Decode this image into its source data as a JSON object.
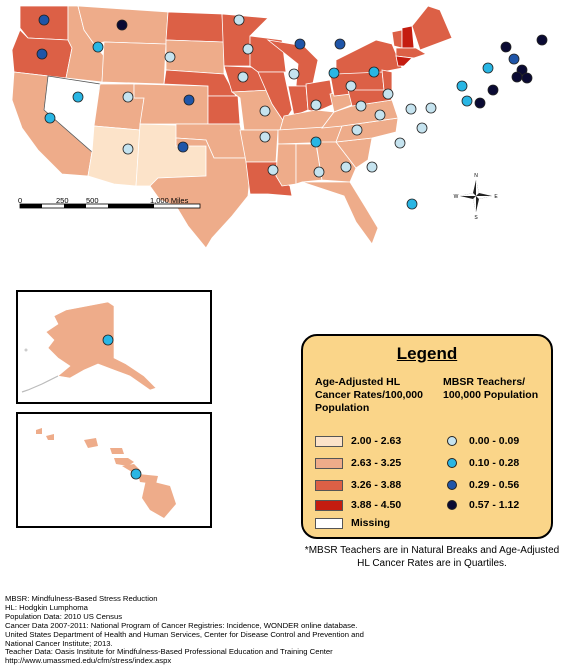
{
  "scale_bar": {
    "labels": [
      "0",
      "250",
      "500",
      "1,000 Miles"
    ]
  },
  "compass": {
    "n": "N",
    "s": "S",
    "e": "E",
    "w": "W"
  },
  "legend": {
    "title": "Legend",
    "cancer_title": "Age-Adjusted HL Cancer Rates/100,000 Population",
    "mbsr_title": "MBSR Teachers/ 100,000 Population",
    "cancer_classes": [
      {
        "label": "2.00 - 2.63",
        "color": "#fce3c9"
      },
      {
        "label": "2.63 - 3.25",
        "color": "#eeac8a"
      },
      {
        "label": "3.26 - 3.88",
        "color": "#dc6046"
      },
      {
        "label": "3.88 - 4.50",
        "color": "#c41c10"
      },
      {
        "label": "Missing",
        "color": "#ffffff"
      }
    ],
    "mbsr_classes": [
      {
        "label": "0.00 - 0.09",
        "color": "#c5e3ef"
      },
      {
        "label": "0.10 - 0.28",
        "color": "#29b6e4"
      },
      {
        "label": "0.29 - 0.56",
        "color": "#1f55a8"
      },
      {
        "label": "0.57 - 1.12",
        "color": "#0a0a33"
      }
    ]
  },
  "footnote": "*MBSR Teachers are in Natural Breaks and Age-Adjusted HL Cancer Rates are in Quartiles.",
  "sources": [
    "MBSR: Mindfulness-Based Stress Reduction",
    "HL: Hodgkin Lumphoma",
    "Population Data: 2010 US Census",
    "Cancer Data 2007-2011: National Program of Cancer Registries: Incidence, WONDER online database.",
    "United States Department of Health and Human Services, Center for Disease Control and Prevention and",
    "National Cancer Institute; 2013.",
    "Teacher Data: Oasis Institute for Mindfulness-Based Professional Education and Training Center",
    "http://www.umassmed.edu/cfm/stress/index.aspx"
  ]
}
